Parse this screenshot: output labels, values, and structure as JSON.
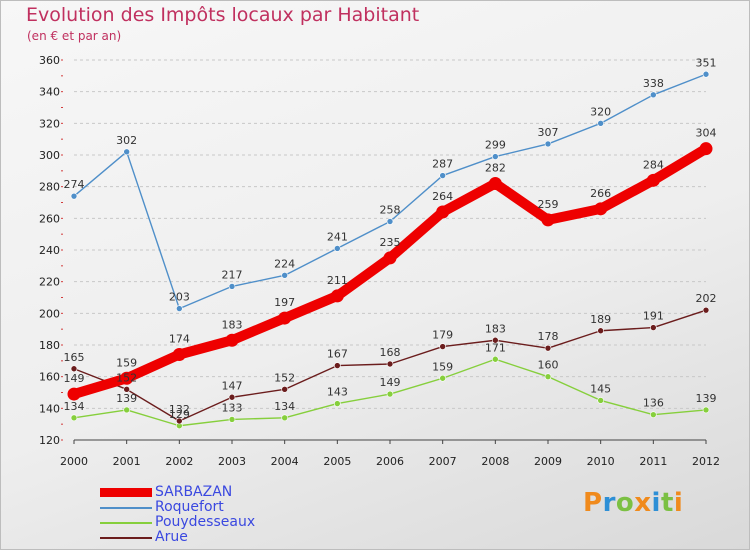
{
  "header": {
    "title": "Evolution des Impôts locaux par Habitant",
    "subtitle": "(en € et par an)"
  },
  "chart_data": {
    "type": "line",
    "title": "Evolution des Impôts locaux par Habitant",
    "subtitle": "(en € et par an)",
    "xlabel": "",
    "ylabel": "",
    "x": [
      "2000",
      "2001",
      "2002",
      "2003",
      "2004",
      "2005",
      "2006",
      "2007",
      "2008",
      "2009",
      "2010",
      "2011",
      "2012"
    ],
    "ylim": [
      120,
      360
    ],
    "yticks": [
      120,
      140,
      160,
      180,
      200,
      220,
      240,
      260,
      280,
      300,
      320,
      340,
      360
    ],
    "grid": true,
    "legend_position": "bottom-left",
    "series": [
      {
        "name": "SARBAZAN",
        "color": "#ee0000",
        "values": [
          149,
          159,
          174,
          183,
          197,
          211,
          235,
          264,
          282,
          259,
          266,
          284,
          304
        ]
      },
      {
        "name": "Roquefort",
        "color": "#4f8fc9",
        "values": [
          274,
          302,
          203,
          217,
          224,
          241,
          258,
          287,
          299,
          307,
          320,
          338,
          351
        ]
      },
      {
        "name": "Pouydesseaux",
        "color": "#86cf3c",
        "values": [
          134,
          139,
          129,
          133,
          134,
          143,
          149,
          159,
          171,
          160,
          145,
          136,
          139
        ]
      },
      {
        "name": "Arue",
        "color": "#6b1d1d",
        "values": [
          165,
          152,
          132,
          147,
          152,
          167,
          168,
          179,
          183,
          178,
          189,
          191,
          202
        ]
      }
    ]
  },
  "logo": {
    "letters": [
      "P",
      "r",
      "o",
      "x",
      "i",
      "t",
      "i"
    ],
    "colors": [
      "#f08a1c",
      "#2d8fd6",
      "#7bc043",
      "#f08a1c",
      "#2d8fd6",
      "#7bc043",
      "#f08a1c"
    ]
  }
}
